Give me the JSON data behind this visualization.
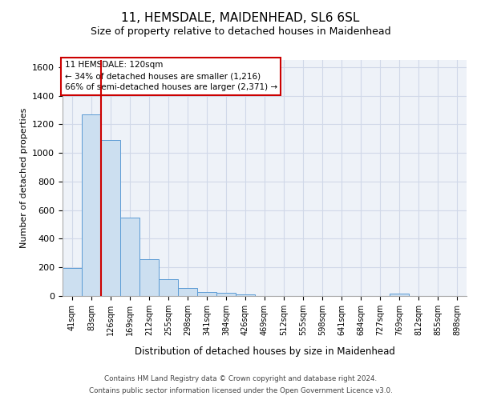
{
  "title1": "11, HEMSDALE, MAIDENHEAD, SL6 6SL",
  "title2": "Size of property relative to detached houses in Maidenhead",
  "xlabel": "Distribution of detached houses by size in Maidenhead",
  "ylabel": "Number of detached properties",
  "footer1": "Contains HM Land Registry data © Crown copyright and database right 2024.",
  "footer2": "Contains public sector information licensed under the Open Government Licence v3.0.",
  "annotation_title": "11 HEMSDALE: 120sqm",
  "annotation_line1": "← 34% of detached houses are smaller (1,216)",
  "annotation_line2": "66% of semi-detached houses are larger (2,371) →",
  "bar_color": "#ccdff0",
  "bar_edge_color": "#5b9bd5",
  "red_line_color": "#cc0000",
  "grid_color": "#d0d8e8",
  "background_color": "#eef2f8",
  "categories": [
    "41sqm",
    "83sqm",
    "126sqm",
    "169sqm",
    "212sqm",
    "255sqm",
    "298sqm",
    "341sqm",
    "384sqm",
    "426sqm",
    "469sqm",
    "512sqm",
    "555sqm",
    "598sqm",
    "641sqm",
    "684sqm",
    "727sqm",
    "769sqm",
    "812sqm",
    "855sqm",
    "898sqm"
  ],
  "values": [
    195,
    1270,
    1090,
    550,
    260,
    120,
    55,
    30,
    20,
    10,
    0,
    0,
    0,
    0,
    0,
    0,
    0,
    15,
    0,
    0,
    0
  ],
  "red_line_x": 1.5,
  "ylim": [
    0,
    1650
  ],
  "yticks": [
    0,
    200,
    400,
    600,
    800,
    1000,
    1200,
    1400,
    1600
  ]
}
